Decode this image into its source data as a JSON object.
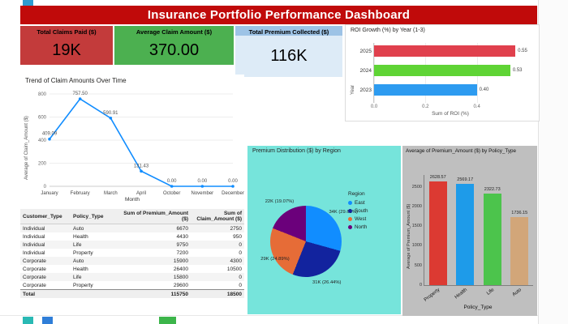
{
  "header": {
    "title": "Insurance Portfolio Performance Dashboard"
  },
  "kpis": [
    {
      "label": "Total Claims Paid ($)",
      "value": "19K",
      "bg": "#C33B3B"
    },
    {
      "label": "Average Claim Amount ($)",
      "value": "370.00",
      "bg": "#4CB050"
    },
    {
      "label": "Total Premium Collected ($)",
      "value": "116K",
      "bg": "#9DC3E6",
      "value_bg": "#DDEBF7"
    }
  ],
  "chart_data": [
    {
      "id": "roi",
      "type": "bar",
      "orientation": "horizontal",
      "title": "ROI Growth (%) by Year (1-3)",
      "categories": [
        "2025",
        "2024",
        "2023"
      ],
      "values": [
        0.55,
        0.53,
        0.4
      ],
      "value_labels": [
        "0.55",
        "0.53",
        "0.40"
      ],
      "bar_colors": [
        "#E0404D",
        "#5FD435",
        "#2D9BF0"
      ],
      "xlabel": "Sum of ROI (%)",
      "ylabel": "Year",
      "xticks": [
        "0.0",
        "0.2",
        "0.4"
      ],
      "xlim": [
        0,
        0.6
      ],
      "grid": true
    },
    {
      "id": "trend",
      "type": "line",
      "title": "Trend of Claim Amounts Over Time",
      "x": [
        "January",
        "February",
        "March",
        "April",
        "October",
        "November",
        "December"
      ],
      "values": [
        409.09,
        757.5,
        590.91,
        131.43,
        0,
        0,
        0
      ],
      "point_labels": [
        "409.09",
        "757.50",
        "590.91",
        "131.43",
        "0.00",
        "0.00",
        "0.00"
      ],
      "line_color": "#118DFF",
      "xlabel": "Month",
      "ylabel": "Average of Claim_Amount ($)",
      "yticks": [
        0,
        200,
        400,
        600,
        800
      ],
      "ylim": [
        0,
        800
      ],
      "grid": true
    },
    {
      "id": "region",
      "type": "pie",
      "title": "Premium Distribution ($) by Region",
      "legend_title": "Region",
      "legend_position": "right",
      "categories": [
        "East",
        "South",
        "West",
        "North"
      ],
      "values": [
        34,
        31,
        29,
        22
      ],
      "percents": [
        29.61,
        26.44,
        24.89,
        19.07
      ],
      "slice_labels": [
        "34K (29.61%)",
        "31K (26.44%)",
        "29K (24.89%)",
        "22K (19.07%)"
      ],
      "slice_colors": [
        "#118DFF",
        "#12239E",
        "#E66C37",
        "#6B007B"
      ],
      "panel_bg": "#76E4DB"
    },
    {
      "id": "policy",
      "type": "bar",
      "orientation": "vertical",
      "title": "Average of Premium_Amount ($) by Policy_Type",
      "categories": [
        "Property",
        "Health",
        "Life",
        "Auto"
      ],
      "values": [
        2628.57,
        2569.17,
        2322.73,
        1736.15
      ],
      "value_labels": [
        "2628.57",
        "2569.17",
        "2322.73",
        "1736.15"
      ],
      "bar_colors": [
        "#DC3A32",
        "#1E9BE9",
        "#4CC44C",
        "#D2A679"
      ],
      "xlabel": "Policy_Type",
      "ylabel": "Average of Premium_Amount ($)",
      "yticks": [
        0,
        500,
        1000,
        1500,
        2000,
        2500
      ],
      "ylim": [
        0,
        2800
      ],
      "panel_bg": "#BFBFBF"
    }
  ],
  "table": {
    "columns": [
      "Customer_Type",
      "Policy_Type",
      "Sum of Premium_Amount ($)",
      "Sum of Claim_Amount ($)"
    ],
    "rows": [
      [
        "Individual",
        "Auto",
        "6670",
        "2750"
      ],
      [
        "Individual",
        "Health",
        "4430",
        "950"
      ],
      [
        "Individual",
        "Life",
        "9750",
        "0"
      ],
      [
        "Individual",
        "Property",
        "7200",
        "0"
      ],
      [
        "Corporate",
        "Auto",
        "15900",
        "4300"
      ],
      [
        "Corporate",
        "Health",
        "26400",
        "10500"
      ],
      [
        "Corporate",
        "Life",
        "15800",
        "0"
      ],
      [
        "Corporate",
        "Property",
        "29600",
        "0"
      ]
    ],
    "total_row": [
      "Total",
      "",
      "115750",
      "18500"
    ]
  }
}
